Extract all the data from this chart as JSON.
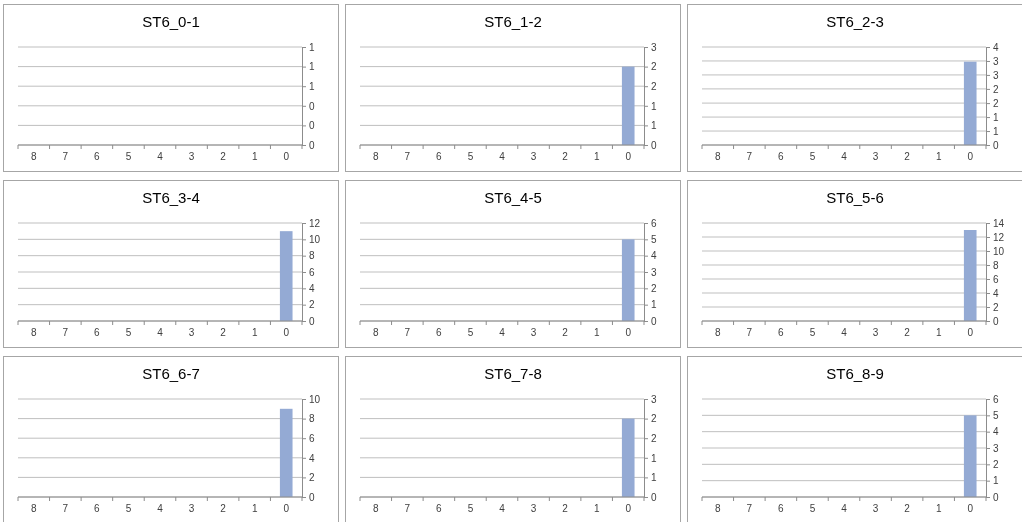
{
  "chart_data": [
    {
      "type": "bar",
      "title": "ST6_0-1",
      "categories": [
        "8",
        "7",
        "6",
        "5",
        "4",
        "3",
        "2",
        "1",
        "0"
      ],
      "values": [
        0,
        0,
        0,
        0,
        0,
        0,
        0,
        0,
        0
      ],
      "color": "#94aad4",
      "ylim": [
        0,
        1
      ],
      "yticks": [
        0,
        {
          "value": 0.2,
          "label": "0"
        },
        {
          "value": 0.4,
          "label": "0"
        },
        {
          "value": 0.6,
          "label": "1"
        },
        {
          "value": 0.8,
          "label": "1"
        },
        1
      ],
      "grid": "y"
    },
    {
      "type": "bar",
      "title": "ST6_1-2",
      "categories": [
        "8",
        "7",
        "6",
        "5",
        "4",
        "3",
        "2",
        "1",
        "0"
      ],
      "values": [
        0,
        0,
        0,
        0,
        0,
        0,
        0,
        0,
        2.4
      ],
      "color": "#94aad4",
      "ylim": [
        0,
        3
      ],
      "yticks": [
        0,
        {
          "value": 0.6,
          "label": "1"
        },
        {
          "value": 1.2,
          "label": "1"
        },
        {
          "value": 1.8,
          "label": "2"
        },
        {
          "value": 2.4,
          "label": "2"
        },
        3
      ],
      "grid": "y"
    },
    {
      "type": "bar",
      "title": "ST6_2-3",
      "categories": [
        "8",
        "7",
        "6",
        "5",
        "4",
        "3",
        "2",
        "1",
        "0"
      ],
      "values": [
        0,
        0,
        0,
        0,
        0,
        0,
        0,
        0,
        3.4
      ],
      "color": "#94aad4",
      "ylim": [
        0,
        4
      ],
      "yticks": [
        0,
        {
          "value": 0.57,
          "label": "1"
        },
        {
          "value": 1.14,
          "label": "1"
        },
        {
          "value": 1.71,
          "label": "2"
        },
        {
          "value": 2.29,
          "label": "2"
        },
        {
          "value": 2.86,
          "label": "3"
        },
        {
          "value": 3.43,
          "label": "3"
        },
        4
      ],
      "grid": "y"
    },
    {
      "type": "bar",
      "title": "ST6_3-4",
      "categories": [
        "8",
        "7",
        "6",
        "5",
        "4",
        "3",
        "2",
        "1",
        "0"
      ],
      "values": [
        0,
        0,
        0,
        0,
        0,
        0,
        0,
        0,
        11
      ],
      "color": "#94aad4",
      "ylim": [
        0,
        12
      ],
      "yticks": [
        0,
        2,
        4,
        6,
        8,
        10,
        12
      ],
      "grid": "y"
    },
    {
      "type": "bar",
      "title": "ST6_4-5",
      "categories": [
        "8",
        "7",
        "6",
        "5",
        "4",
        "3",
        "2",
        "1",
        "0"
      ],
      "values": [
        0,
        0,
        0,
        0,
        0,
        0,
        0,
        0,
        5
      ],
      "color": "#94aad4",
      "ylim": [
        0,
        6
      ],
      "yticks": [
        0,
        1,
        2,
        3,
        4,
        5,
        6
      ],
      "grid": "y"
    },
    {
      "type": "bar",
      "title": "ST6_5-6",
      "categories": [
        "8",
        "7",
        "6",
        "5",
        "4",
        "3",
        "2",
        "1",
        "0"
      ],
      "values": [
        0,
        0,
        0,
        0,
        0,
        0,
        0,
        0,
        13
      ],
      "color": "#94aad4",
      "ylim": [
        0,
        14
      ],
      "yticks": [
        0,
        2,
        4,
        6,
        8,
        10,
        12,
        14
      ],
      "grid": "y"
    },
    {
      "type": "bar",
      "title": "ST6_6-7",
      "categories": [
        "8",
        "7",
        "6",
        "5",
        "4",
        "3",
        "2",
        "1",
        "0"
      ],
      "values": [
        0,
        0,
        0,
        0,
        0,
        0,
        0,
        0,
        9
      ],
      "color": "#94aad4",
      "ylim": [
        0,
        10
      ],
      "yticks": [
        0,
        2,
        4,
        6,
        8,
        10
      ],
      "grid": "y"
    },
    {
      "type": "bar",
      "title": "ST6_7-8",
      "categories": [
        "8",
        "7",
        "6",
        "5",
        "4",
        "3",
        "2",
        "1",
        "0"
      ],
      "values": [
        0,
        0,
        0,
        0,
        0,
        0,
        0,
        0,
        2.4
      ],
      "color": "#94aad4",
      "ylim": [
        0,
        3
      ],
      "yticks": [
        0,
        {
          "value": 0.6,
          "label": "1"
        },
        {
          "value": 1.2,
          "label": "1"
        },
        {
          "value": 1.8,
          "label": "2"
        },
        {
          "value": 2.4,
          "label": "2"
        },
        3
      ],
      "grid": "y"
    },
    {
      "type": "bar",
      "title": "ST6_8-9",
      "categories": [
        "8",
        "7",
        "6",
        "5",
        "4",
        "3",
        "2",
        "1",
        "0"
      ],
      "values": [
        0,
        0,
        0,
        0,
        0,
        0,
        0,
        0,
        5
      ],
      "color": "#94aad4",
      "ylim": [
        0,
        6
      ],
      "yticks": [
        0,
        1,
        2,
        3,
        4,
        5,
        6
      ],
      "grid": "y"
    }
  ]
}
